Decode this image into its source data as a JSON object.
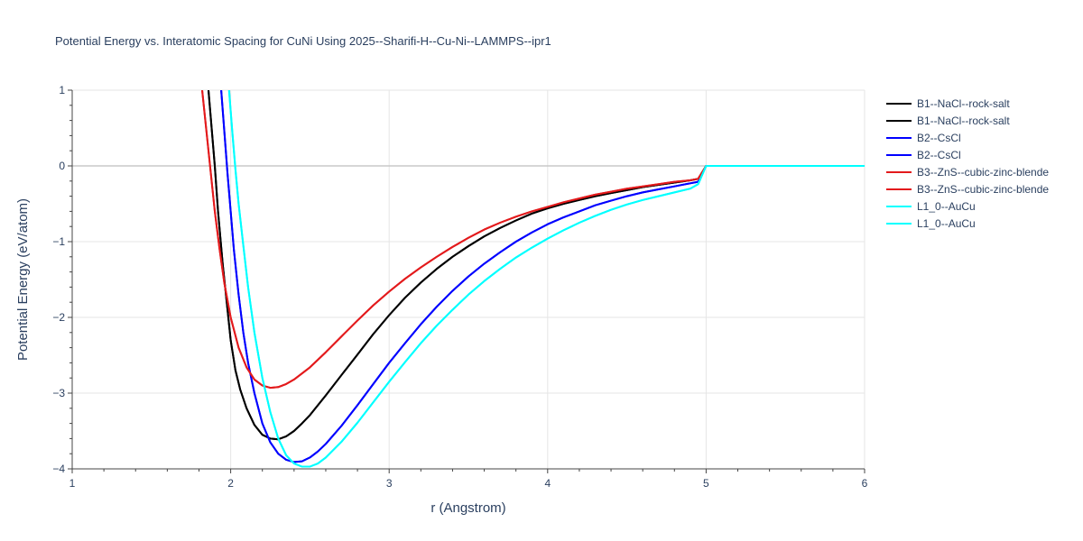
{
  "chart_data": {
    "type": "line",
    "title": "Potential Energy vs. Interatomic Spacing for CuNi Using 2025--Sharifi-H--Cu-Ni--LAMMPS--ipr1",
    "xlabel": "r (Angstrom)",
    "ylabel": "Potential Energy (eV/atom)",
    "xlim": [
      1,
      6
    ],
    "ylim": [
      -4,
      1
    ],
    "xticks": [
      1,
      2,
      3,
      4,
      5,
      6
    ],
    "yticks": [
      -4,
      -3,
      -2,
      -1,
      0,
      1
    ],
    "grid": true,
    "legend_position": "right",
    "series": [
      {
        "name": "B1--NaCl--rock-salt",
        "color": "#000000",
        "x": [
          1.86,
          1.88,
          1.9,
          1.92,
          1.95,
          1.98,
          2.0,
          2.03,
          2.06,
          2.1,
          2.15,
          2.2,
          2.25,
          2.3,
          2.35,
          2.4,
          2.45,
          2.5,
          2.6,
          2.7,
          2.8,
          2.9,
          3.0,
          3.1,
          3.2,
          3.3,
          3.4,
          3.5,
          3.6,
          3.7,
          3.8,
          3.9,
          4.0,
          4.1,
          4.2,
          4.3,
          4.4,
          4.5,
          4.6,
          4.7,
          4.8,
          4.9,
          4.95,
          5.0,
          5.2,
          5.4,
          5.6,
          5.8,
          6.0
        ],
        "y": [
          1.0,
          0.5,
          0.0,
          -0.6,
          -1.3,
          -1.9,
          -2.3,
          -2.7,
          -2.95,
          -3.2,
          -3.42,
          -3.55,
          -3.6,
          -3.61,
          -3.57,
          -3.5,
          -3.4,
          -3.29,
          -3.03,
          -2.76,
          -2.49,
          -2.22,
          -1.97,
          -1.74,
          -1.54,
          -1.36,
          -1.2,
          -1.06,
          -0.93,
          -0.82,
          -0.72,
          -0.63,
          -0.56,
          -0.5,
          -0.45,
          -0.4,
          -0.36,
          -0.32,
          -0.28,
          -0.25,
          -0.22,
          -0.19,
          -0.17,
          0.0,
          0.0,
          0.0,
          0.0,
          0.0,
          0.0
        ]
      },
      {
        "name": "B1--NaCl--rock-salt",
        "color": "#000000",
        "x": [
          1.86,
          1.88,
          1.9,
          1.92,
          1.95,
          1.98,
          2.0,
          2.03,
          2.06,
          2.1,
          2.15,
          2.2,
          2.25,
          2.3,
          2.35,
          2.4,
          2.45,
          2.5,
          2.6,
          2.7,
          2.8,
          2.9,
          3.0,
          3.1,
          3.2,
          3.3,
          3.4,
          3.5,
          3.6,
          3.7,
          3.8,
          3.9,
          4.0,
          4.1,
          4.2,
          4.3,
          4.4,
          4.5,
          4.6,
          4.7,
          4.8,
          4.9,
          4.95,
          5.0,
          5.2,
          5.4,
          5.6,
          5.8,
          6.0
        ],
        "y": [
          1.0,
          0.5,
          0.0,
          -0.6,
          -1.3,
          -1.9,
          -2.3,
          -2.7,
          -2.95,
          -3.2,
          -3.42,
          -3.55,
          -3.6,
          -3.61,
          -3.57,
          -3.5,
          -3.4,
          -3.29,
          -3.03,
          -2.76,
          -2.49,
          -2.22,
          -1.97,
          -1.74,
          -1.54,
          -1.36,
          -1.2,
          -1.06,
          -0.93,
          -0.82,
          -0.72,
          -0.63,
          -0.56,
          -0.5,
          -0.45,
          -0.4,
          -0.36,
          -0.32,
          -0.28,
          -0.25,
          -0.22,
          -0.19,
          -0.17,
          0.0,
          0.0,
          0.0,
          0.0,
          0.0,
          0.0
        ]
      },
      {
        "name": "B2--CsCl",
        "color": "#0000ff",
        "x": [
          1.94,
          1.96,
          1.98,
          2.0,
          2.02,
          2.05,
          2.08,
          2.11,
          2.15,
          2.2,
          2.25,
          2.3,
          2.35,
          2.4,
          2.45,
          2.5,
          2.55,
          2.6,
          2.7,
          2.8,
          2.9,
          3.0,
          3.1,
          3.2,
          3.3,
          3.4,
          3.5,
          3.6,
          3.7,
          3.8,
          3.9,
          4.0,
          4.1,
          4.2,
          4.3,
          4.4,
          4.5,
          4.6,
          4.7,
          4.8,
          4.9,
          4.95,
          5.0,
          5.2,
          5.4,
          5.6,
          5.8,
          6.0
        ],
        "y": [
          1.0,
          0.45,
          -0.1,
          -0.6,
          -1.1,
          -1.7,
          -2.2,
          -2.6,
          -3.0,
          -3.4,
          -3.65,
          -3.8,
          -3.88,
          -3.91,
          -3.9,
          -3.85,
          -3.77,
          -3.67,
          -3.43,
          -3.16,
          -2.88,
          -2.6,
          -2.34,
          -2.09,
          -1.86,
          -1.65,
          -1.46,
          -1.29,
          -1.14,
          -1.0,
          -0.88,
          -0.77,
          -0.68,
          -0.6,
          -0.52,
          -0.46,
          -0.4,
          -0.35,
          -0.31,
          -0.27,
          -0.23,
          -0.21,
          0.0,
          0.0,
          0.0,
          0.0,
          0.0,
          0.0
        ]
      },
      {
        "name": "B2--CsCl",
        "color": "#0000ff",
        "x": [
          1.94,
          1.96,
          1.98,
          2.0,
          2.02,
          2.05,
          2.08,
          2.11,
          2.15,
          2.2,
          2.25,
          2.3,
          2.35,
          2.4,
          2.45,
          2.5,
          2.55,
          2.6,
          2.7,
          2.8,
          2.9,
          3.0,
          3.1,
          3.2,
          3.3,
          3.4,
          3.5,
          3.6,
          3.7,
          3.8,
          3.9,
          4.0,
          4.1,
          4.2,
          4.3,
          4.4,
          4.5,
          4.6,
          4.7,
          4.8,
          4.9,
          4.95,
          5.0,
          5.2,
          5.4,
          5.6,
          5.8,
          6.0
        ],
        "y": [
          1.0,
          0.45,
          -0.1,
          -0.6,
          -1.1,
          -1.7,
          -2.2,
          -2.6,
          -3.0,
          -3.4,
          -3.65,
          -3.8,
          -3.88,
          -3.91,
          -3.9,
          -3.85,
          -3.77,
          -3.67,
          -3.43,
          -3.16,
          -2.88,
          -2.6,
          -2.34,
          -2.09,
          -1.86,
          -1.65,
          -1.46,
          -1.29,
          -1.14,
          -1.0,
          -0.88,
          -0.77,
          -0.68,
          -0.6,
          -0.52,
          -0.46,
          -0.4,
          -0.35,
          -0.31,
          -0.27,
          -0.23,
          -0.21,
          0.0,
          0.0,
          0.0,
          0.0,
          0.0,
          0.0
        ]
      },
      {
        "name": "B3--ZnS--cubic-zinc-blende",
        "color": "#e31a1c",
        "x": [
          1.82,
          1.84,
          1.86,
          1.88,
          1.9,
          1.93,
          1.96,
          2.0,
          2.05,
          2.1,
          2.15,
          2.2,
          2.25,
          2.3,
          2.35,
          2.4,
          2.5,
          2.6,
          2.7,
          2.8,
          2.9,
          3.0,
          3.1,
          3.2,
          3.3,
          3.4,
          3.5,
          3.6,
          3.7,
          3.8,
          3.9,
          4.0,
          4.1,
          4.2,
          4.3,
          4.4,
          4.5,
          4.6,
          4.7,
          4.8,
          4.9,
          4.95,
          5.0,
          5.2,
          5.4,
          5.6,
          5.8,
          6.0
        ],
        "y": [
          1.0,
          0.6,
          0.2,
          -0.2,
          -0.6,
          -1.1,
          -1.55,
          -2.0,
          -2.4,
          -2.66,
          -2.82,
          -2.9,
          -2.93,
          -2.92,
          -2.88,
          -2.82,
          -2.66,
          -2.46,
          -2.25,
          -2.04,
          -1.84,
          -1.66,
          -1.49,
          -1.34,
          -1.2,
          -1.07,
          -0.95,
          -0.84,
          -0.75,
          -0.67,
          -0.6,
          -0.54,
          -0.48,
          -0.43,
          -0.38,
          -0.34,
          -0.3,
          -0.27,
          -0.24,
          -0.21,
          -0.19,
          -0.17,
          0.0,
          0.0,
          0.0,
          0.0,
          0.0,
          0.0
        ]
      },
      {
        "name": "B3--ZnS--cubic-zinc-blende",
        "color": "#e31a1c",
        "x": [
          1.82,
          1.84,
          1.86,
          1.88,
          1.9,
          1.93,
          1.96,
          2.0,
          2.05,
          2.1,
          2.15,
          2.2,
          2.25,
          2.3,
          2.35,
          2.4,
          2.5,
          2.6,
          2.7,
          2.8,
          2.9,
          3.0,
          3.1,
          3.2,
          3.3,
          3.4,
          3.5,
          3.6,
          3.7,
          3.8,
          3.9,
          4.0,
          4.1,
          4.2,
          4.3,
          4.4,
          4.5,
          4.6,
          4.7,
          4.8,
          4.9,
          4.95,
          5.0,
          5.2,
          5.4,
          5.6,
          5.8,
          6.0
        ],
        "y": [
          1.0,
          0.6,
          0.2,
          -0.2,
          -0.6,
          -1.1,
          -1.55,
          -2.0,
          -2.4,
          -2.66,
          -2.82,
          -2.9,
          -2.93,
          -2.92,
          -2.88,
          -2.82,
          -2.66,
          -2.46,
          -2.25,
          -2.04,
          -1.84,
          -1.66,
          -1.49,
          -1.34,
          -1.2,
          -1.07,
          -0.95,
          -0.84,
          -0.75,
          -0.67,
          -0.6,
          -0.54,
          -0.48,
          -0.43,
          -0.38,
          -0.34,
          -0.3,
          -0.27,
          -0.24,
          -0.21,
          -0.19,
          -0.17,
          0.0,
          0.0,
          0.0,
          0.0,
          0.0,
          0.0
        ]
      },
      {
        "name": "L1_0--AuCu",
        "color": "#00ffff",
        "x": [
          1.99,
          2.01,
          2.03,
          2.05,
          2.08,
          2.11,
          2.15,
          2.2,
          2.25,
          2.3,
          2.35,
          2.4,
          2.45,
          2.5,
          2.55,
          2.6,
          2.7,
          2.8,
          2.9,
          3.0,
          3.1,
          3.2,
          3.3,
          3.4,
          3.5,
          3.6,
          3.7,
          3.8,
          3.9,
          4.0,
          4.1,
          4.2,
          4.3,
          4.4,
          4.5,
          4.6,
          4.7,
          4.8,
          4.9,
          4.95,
          5.0,
          5.2,
          5.4,
          5.6,
          5.8,
          6.0
        ],
        "y": [
          1.0,
          0.45,
          -0.05,
          -0.5,
          -1.05,
          -1.6,
          -2.2,
          -2.8,
          -3.25,
          -3.6,
          -3.82,
          -3.93,
          -3.97,
          -3.97,
          -3.93,
          -3.85,
          -3.64,
          -3.39,
          -3.12,
          -2.85,
          -2.59,
          -2.34,
          -2.11,
          -1.9,
          -1.7,
          -1.52,
          -1.36,
          -1.21,
          -1.08,
          -0.96,
          -0.85,
          -0.75,
          -0.66,
          -0.58,
          -0.51,
          -0.45,
          -0.4,
          -0.35,
          -0.3,
          -0.24,
          0.0,
          0.0,
          0.0,
          0.0,
          0.0,
          0.0
        ]
      },
      {
        "name": "L1_0--AuCu",
        "color": "#00ffff",
        "x": [
          1.99,
          2.01,
          2.03,
          2.05,
          2.08,
          2.11,
          2.15,
          2.2,
          2.25,
          2.3,
          2.35,
          2.4,
          2.45,
          2.5,
          2.55,
          2.6,
          2.7,
          2.8,
          2.9,
          3.0,
          3.1,
          3.2,
          3.3,
          3.4,
          3.5,
          3.6,
          3.7,
          3.8,
          3.9,
          4.0,
          4.1,
          4.2,
          4.3,
          4.4,
          4.5,
          4.6,
          4.7,
          4.8,
          4.9,
          4.95,
          5.0,
          5.2,
          5.4,
          5.6,
          5.8,
          6.0
        ],
        "y": [
          1.0,
          0.45,
          -0.05,
          -0.5,
          -1.05,
          -1.6,
          -2.2,
          -2.8,
          -3.25,
          -3.6,
          -3.82,
          -3.93,
          -3.97,
          -3.97,
          -3.93,
          -3.85,
          -3.64,
          -3.39,
          -3.12,
          -2.85,
          -2.59,
          -2.34,
          -2.11,
          -1.9,
          -1.7,
          -1.52,
          -1.36,
          -1.21,
          -1.08,
          -0.96,
          -0.85,
          -0.75,
          -0.66,
          -0.58,
          -0.51,
          -0.45,
          -0.4,
          -0.35,
          -0.3,
          -0.24,
          0.0,
          0.0,
          0.0,
          0.0,
          0.0,
          0.0
        ]
      }
    ]
  }
}
